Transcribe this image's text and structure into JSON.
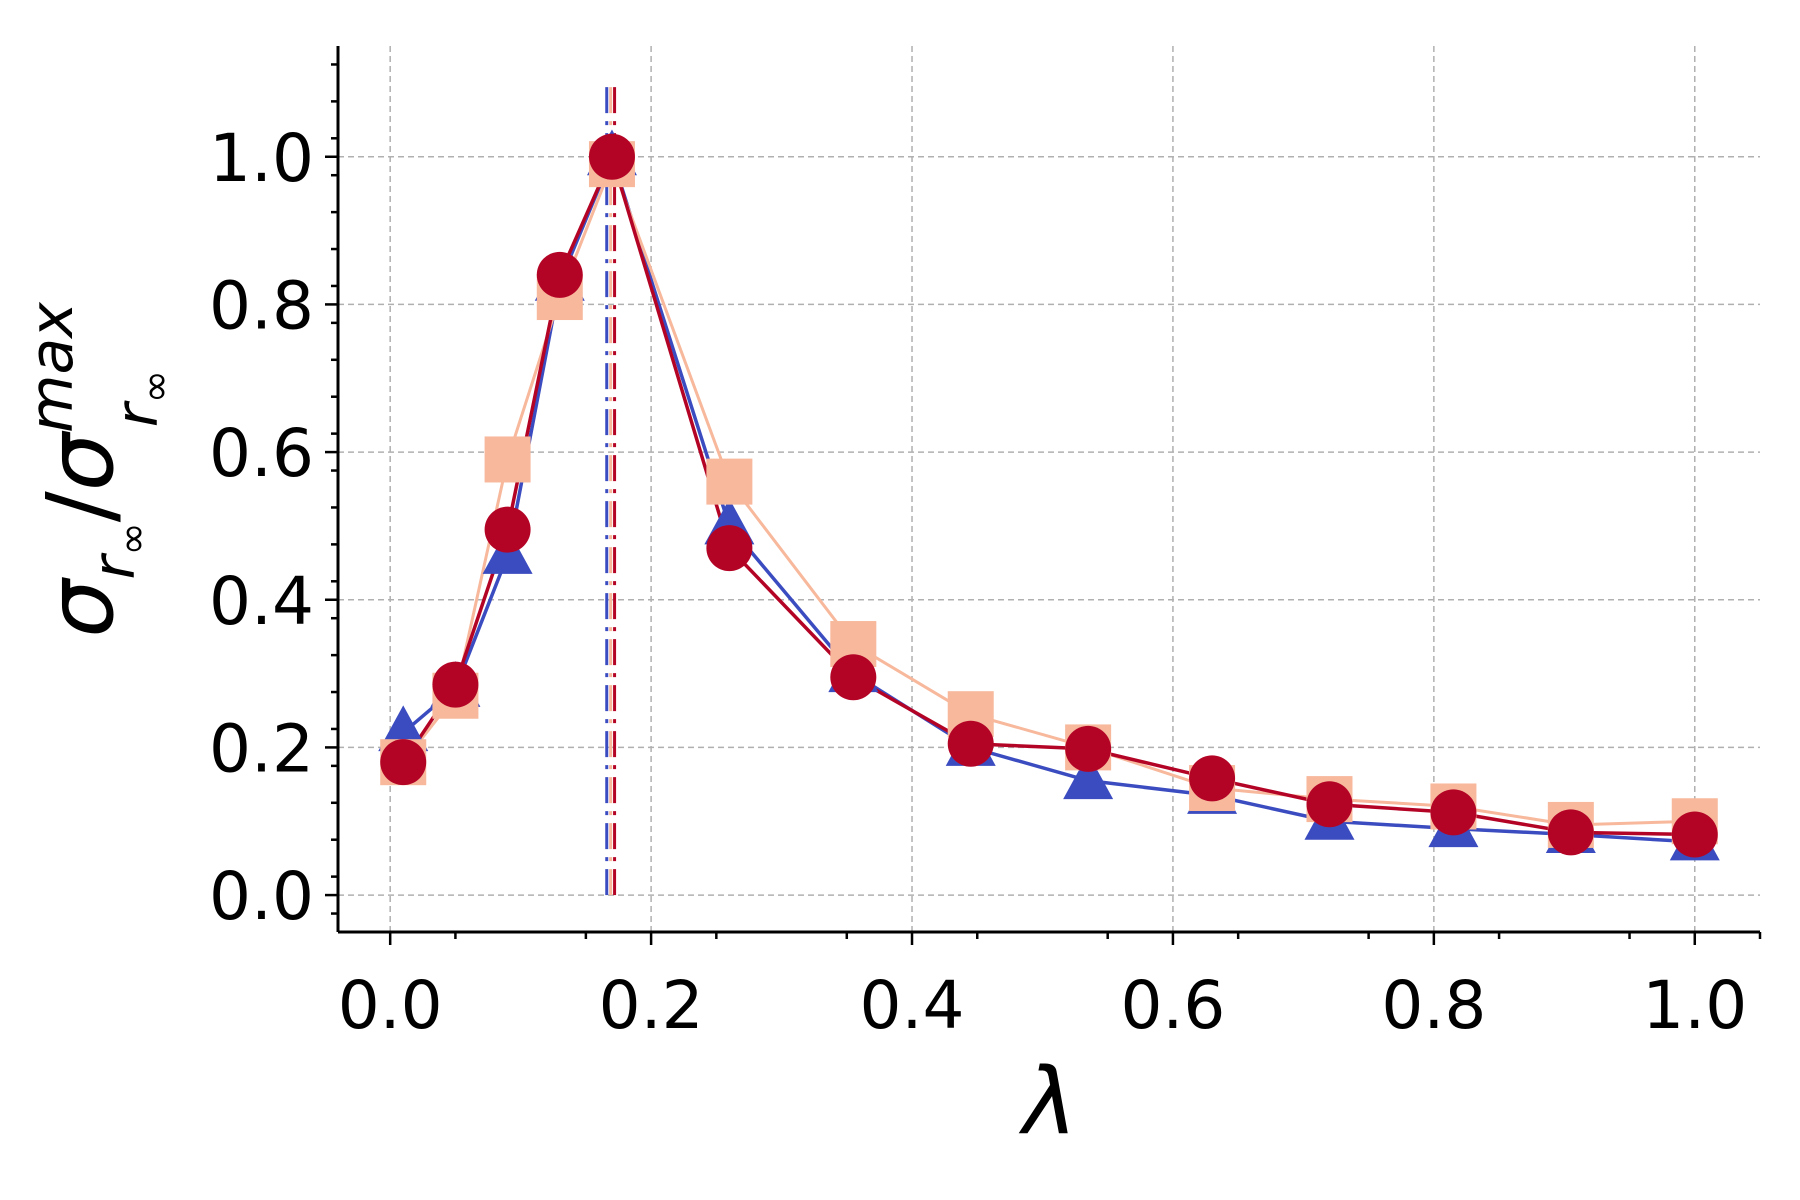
{
  "chart_data": {
    "type": "line",
    "title": "",
    "xlabel": "λ",
    "ylabel": {
      "base": "σ",
      "base_sub": "r",
      "base_subsub": "∞",
      "sep": "/",
      "denom": "σ",
      "denom_sup": "max",
      "denom_sub": "r",
      "denom_subsub": "∞"
    },
    "xlim": [
      -0.04,
      1.05
    ],
    "ylim": [
      -0.05,
      1.15
    ],
    "x_ticks": [
      "0.0",
      "0.2",
      "0.4",
      "0.6",
      "0.8",
      "1.0"
    ],
    "y_ticks": [
      "0.0",
      "0.2",
      "0.4",
      "0.6",
      "0.8",
      "1.0"
    ],
    "grid": true,
    "x": [
      0.01,
      0.05,
      0.09,
      0.13,
      0.17,
      0.26,
      0.355,
      0.445,
      0.535,
      0.63,
      0.72,
      0.815,
      0.905,
      1.0
    ],
    "series": [
      {
        "marker": "triangle",
        "color": "#3b4cc0",
        "values": [
          0.22,
          0.28,
          0.46,
          0.83,
          1.0,
          0.5,
          0.3,
          0.2,
          0.155,
          0.135,
          0.1,
          0.09,
          0.082,
          0.072
        ]
      },
      {
        "marker": "square",
        "color": "#f7b89c",
        "values": [
          0.18,
          0.27,
          0.59,
          0.81,
          0.99,
          0.56,
          0.34,
          0.245,
          0.2,
          0.145,
          0.13,
          0.12,
          0.095,
          0.1
        ]
      },
      {
        "marker": "circle",
        "color": "#b40426",
        "values": [
          0.18,
          0.285,
          0.495,
          0.84,
          1.0,
          0.47,
          0.295,
          0.205,
          0.198,
          0.158,
          0.123,
          0.112,
          0.085,
          0.082
        ]
      }
    ],
    "vlines": [
      {
        "x": 0.166,
        "color": "#3b4cc0",
        "style": "dashdot"
      },
      {
        "x": 0.169,
        "color": "#f7b89c",
        "style": "dashdot"
      },
      {
        "x": 0.172,
        "color": "#b40426",
        "style": "dashdot"
      }
    ],
    "vline_ymax": 1.1
  }
}
